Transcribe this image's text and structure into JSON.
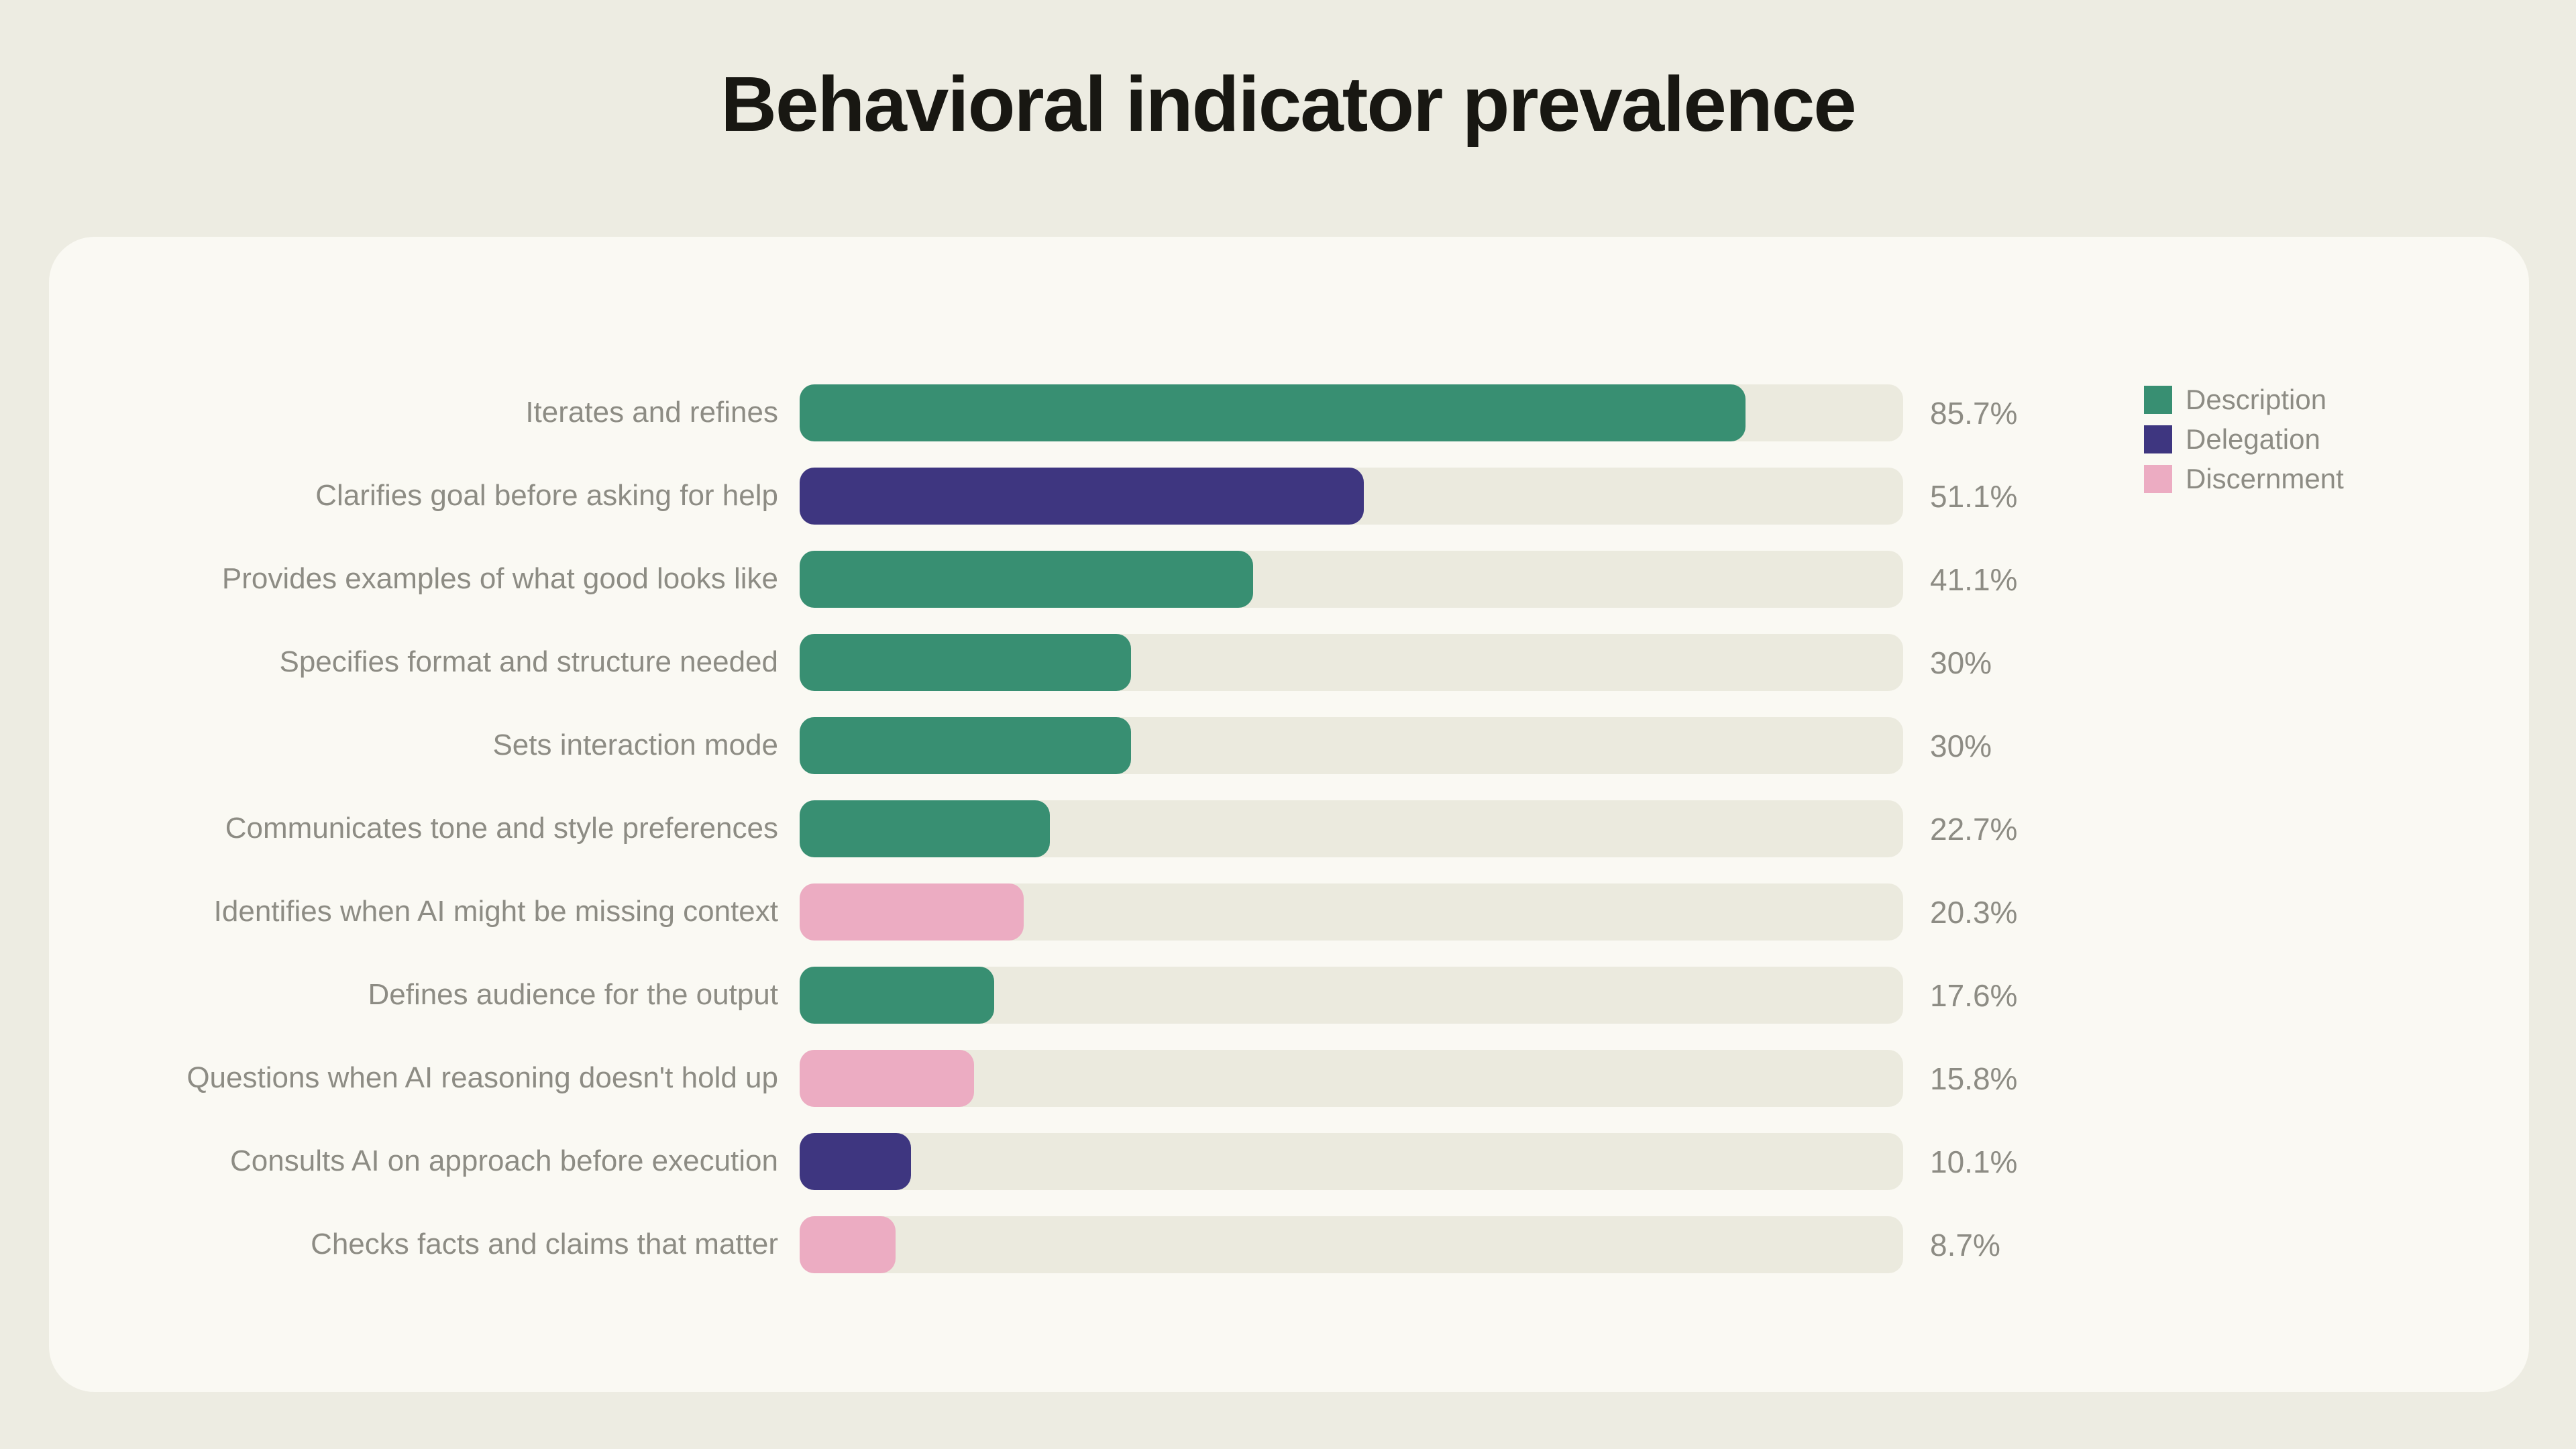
{
  "page": {
    "title": "Behavioral indicator prevalence",
    "background_color": "#EDECE2",
    "card_background_color": "#FAF9F3",
    "title_color": "#181712",
    "text_color": "#8D8C84",
    "track_color": "#EBEADE"
  },
  "legend": {
    "position": "top-right",
    "items": [
      {
        "label": "Description",
        "key": "description",
        "color": "#388F72"
      },
      {
        "label": "Delegation",
        "key": "delegation",
        "color": "#3E3680"
      },
      {
        "label": "Discernment",
        "key": "discernment",
        "color": "#ECACC2"
      }
    ]
  },
  "chart_data": {
    "type": "bar",
    "orientation": "horizontal",
    "title": "Behavioral indicator prevalence",
    "xlabel": "",
    "ylabel": "",
    "xlim": [
      0,
      100
    ],
    "unit": "%",
    "grid": false,
    "categories": [
      "Iterates and refines",
      "Clarifies goal before asking for help",
      "Provides examples of what good looks like",
      "Specifies format and structure needed",
      "Sets interaction mode",
      "Communicates tone and style preferences",
      "Identifies when AI might be missing context",
      "Defines audience for the output",
      "Questions when AI reasoning doesn't hold up",
      "Consults AI on approach before execution",
      "Checks facts and claims that matter"
    ],
    "values": [
      85.7,
      51.1,
      41.1,
      30,
      30,
      22.7,
      20.3,
      17.6,
      15.8,
      10.1,
      8.7
    ],
    "value_labels": [
      "85.7%",
      "51.1%",
      "41.1%",
      "30%",
      "30%",
      "22.7%",
      "20.3%",
      "17.6%",
      "15.8%",
      "10.1%",
      "8.7%"
    ],
    "bar_series": [
      "description",
      "delegation",
      "description",
      "description",
      "description",
      "description",
      "discernment",
      "description",
      "discernment",
      "delegation",
      "discernment"
    ]
  }
}
